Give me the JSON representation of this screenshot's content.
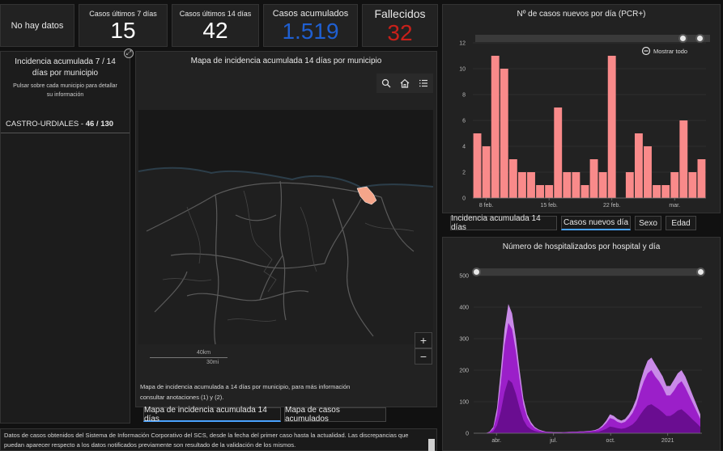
{
  "kpis": {
    "no_data": "No hay datos",
    "cases_7d": {
      "label": "Casos últimos 7 días",
      "value": "15"
    },
    "cases_14d": {
      "label": "Casos últimos 14 días",
      "value": "42"
    },
    "cumulative": {
      "label": "Casos acumulados",
      "value": "1.519",
      "color": "#1f5fd1"
    },
    "deaths": {
      "label": "Fallecidos",
      "value": "32",
      "color": "#c8201a"
    }
  },
  "left_panel": {
    "title": "Incidencia acumulada 7 / 14 días por municipio",
    "hint": "Pulsar sobre cada municipio para detallar su información",
    "municipality": "CASTRO-URDIALES",
    "separator": " - ",
    "value": "46 / 130"
  },
  "map": {
    "title": "Mapa de incidencia acumulada 14 días por municipio",
    "scale_km": "40km",
    "scale_mi": "30mi",
    "zoom_in": "+",
    "zoom_out": "−",
    "caption": "Mapa de incidencia acumulada a 14 días por municipio, para más información consultar anotaciones (1) y (2).",
    "tabs": [
      "Mapa de incidencia acumulada 14 días",
      "Mapa de casos acumulados"
    ],
    "active_tab": 0,
    "highlight_color": "#f4a58a"
  },
  "bar_chart_panel": {
    "title": "Nº de casos nuevos por día (PCR+)",
    "show_all": "Mostrar todo",
    "tabs": [
      "Incidencia acumulada 14 días",
      "Casos nuevos día",
      "Sexo",
      "Edad"
    ],
    "active_tab": 1,
    "bar_color": "#f98a8a"
  },
  "area_chart_panel": {
    "title": "Número de hospitalizados por hospital y día",
    "colors": [
      "#c98ae8",
      "#9b1fc9",
      "#6a0d91"
    ]
  },
  "footer": {
    "text": "Datos de casos obtenidos del Sistema de Información Corporativo del SCS, desde la fecha del primer caso hasta la actualidad. Las discrepancias que puedan aparecer respecto a los datos notificados previamente son resultado de la validación de los mismos."
  },
  "chart_data": [
    {
      "type": "bar",
      "title": "Nº de casos nuevos por día (PCR+)",
      "values": [
        5,
        4,
        11,
        10,
        3,
        2,
        2,
        1,
        1,
        7,
        2,
        2,
        1,
        3,
        2,
        11,
        0,
        2,
        5,
        4,
        1,
        1,
        2,
        6,
        2,
        3
      ],
      "x_tick_labels": [
        "8 feb.",
        "15 feb.",
        "22 feb.",
        "mar."
      ],
      "x_tick_index": [
        1,
        8,
        15,
        22
      ],
      "ylim": [
        0,
        12
      ],
      "y_ticks": [
        0,
        2,
        4,
        6,
        8,
        10,
        12
      ]
    },
    {
      "type": "area",
      "title": "Número de hospitalizados por hospital y día",
      "ylim": [
        0,
        500
      ],
      "y_ticks": [
        0,
        100,
        200,
        300,
        400,
        500
      ],
      "x_tick_labels": [
        "abr.",
        "jul.",
        "oct.",
        "2021"
      ],
      "x_tick_pos": [
        0.1,
        0.35,
        0.6,
        0.85
      ],
      "series": [
        {
          "values": [
            0,
            5,
            20,
            80,
            200,
            330,
            410,
            380,
            300,
            200,
            110,
            60,
            35,
            20,
            12,
            8,
            5,
            4,
            3,
            3,
            3,
            3,
            4,
            5,
            5,
            6,
            6,
            7,
            8,
            10,
            15,
            25,
            40,
            60,
            55,
            45,
            40,
            45,
            60,
            80,
            110,
            160,
            200,
            230,
            240,
            220,
            200,
            180,
            150,
            150,
            170,
            190,
            200,
            180,
            150,
            120,
            90,
            60
          ]
        },
        {
          "values": [
            0,
            3,
            15,
            60,
            160,
            280,
            350,
            330,
            260,
            170,
            90,
            50,
            28,
            16,
            10,
            6,
            4,
            3,
            2,
            2,
            2,
            3,
            3,
            4,
            4,
            5,
            5,
            6,
            7,
            8,
            12,
            20,
            32,
            48,
            44,
            36,
            32,
            36,
            48,
            64,
            90,
            130,
            165,
            190,
            200,
            180,
            165,
            145,
            120,
            120,
            135,
            155,
            165,
            145,
            120,
            95,
            70,
            45
          ]
        },
        {
          "values": [
            0,
            1,
            6,
            25,
            70,
            130,
            170,
            160,
            125,
            80,
            42,
            22,
            12,
            7,
            4,
            3,
            2,
            1,
            1,
            1,
            1,
            1,
            1,
            2,
            2,
            2,
            2,
            3,
            3,
            4,
            5,
            9,
            14,
            21,
            19,
            16,
            14,
            16,
            21,
            28,
            40,
            58,
            75,
            88,
            92,
            84,
            76,
            66,
            55,
            55,
            62,
            72,
            76,
            66,
            55,
            43,
            32,
            20
          ]
        }
      ]
    }
  ]
}
